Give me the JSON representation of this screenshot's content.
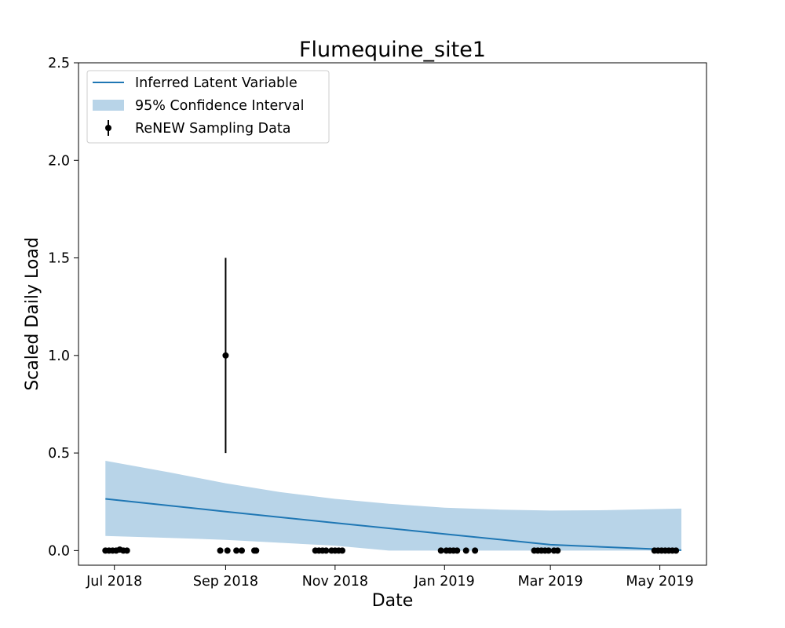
{
  "chart_data": {
    "type": "line",
    "title": "Flumequine_site1",
    "xlabel": "Date",
    "ylabel": "Scaled Daily Load",
    "ylim": [
      -0.075,
      2.5
    ],
    "xlim": [
      "2018-06-11",
      "2019-05-27"
    ],
    "x_ticks": [
      {
        "date": "2018-07-01",
        "label": "Jul 2018"
      },
      {
        "date": "2018-09-01",
        "label": "Sep 2018"
      },
      {
        "date": "2018-11-01",
        "label": "Nov 2018"
      },
      {
        "date": "2019-01-01",
        "label": "Jan 2019"
      },
      {
        "date": "2019-03-01",
        "label": "Mar 2019"
      },
      {
        "date": "2019-05-01",
        "label": "May 2019"
      }
    ],
    "y_ticks": [
      {
        "value": 0.0,
        "label": "0.0"
      },
      {
        "value": 0.5,
        "label": "0.5"
      },
      {
        "value": 1.0,
        "label": "1.0"
      },
      {
        "value": 1.5,
        "label": "1.5"
      },
      {
        "value": 2.0,
        "label": "2.0"
      },
      {
        "value": 2.5,
        "label": "2.5"
      }
    ],
    "grid": false,
    "legend": {
      "position": "top-left",
      "entries": [
        {
          "label": "Inferred Latent Variable",
          "kind": "line"
        },
        {
          "label": "95% Confidence Interval",
          "kind": "band"
        },
        {
          "label": "ReNEW Sampling Data",
          "kind": "errorbar"
        }
      ]
    },
    "colors": {
      "latent": "#1f77b4",
      "ci": "#b8d4e8",
      "samples": "#000000"
    },
    "series": [
      {
        "name": "Inferred Latent Variable",
        "kind": "line",
        "points": [
          {
            "x": "2018-06-26",
            "y": 0.265
          },
          {
            "x": "2018-09-01",
            "y": 0.2
          },
          {
            "x": "2018-11-01",
            "y": 0.142
          },
          {
            "x": "2019-01-01",
            "y": 0.085
          },
          {
            "x": "2019-03-01",
            "y": 0.03
          },
          {
            "x": "2019-05-13",
            "y": 0.002
          }
        ]
      },
      {
        "name": "95% Confidence Interval",
        "kind": "band",
        "points": [
          {
            "x": "2018-06-26",
            "upper": 0.46,
            "lower": 0.075
          },
          {
            "x": "2018-08-01",
            "upper": 0.4,
            "lower": 0.065
          },
          {
            "x": "2018-09-01",
            "upper": 0.345,
            "lower": 0.055
          },
          {
            "x": "2018-10-01",
            "upper": 0.3,
            "lower": 0.04
          },
          {
            "x": "2018-11-01",
            "upper": 0.265,
            "lower": 0.025
          },
          {
            "x": "2018-12-01",
            "upper": 0.24,
            "lower": 0.0
          },
          {
            "x": "2019-01-01",
            "upper": 0.22,
            "lower": 0.0
          },
          {
            "x": "2019-02-01",
            "upper": 0.21,
            "lower": 0.0
          },
          {
            "x": "2019-03-01",
            "upper": 0.205,
            "lower": 0.0
          },
          {
            "x": "2019-04-01",
            "upper": 0.207,
            "lower": 0.0
          },
          {
            "x": "2019-05-13",
            "upper": 0.215,
            "lower": 0.0
          }
        ]
      },
      {
        "name": "ReNEW Sampling Data",
        "kind": "errorbar",
        "points": [
          {
            "x": "2018-06-26",
            "y": 0.0
          },
          {
            "x": "2018-06-28",
            "y": 0.0
          },
          {
            "x": "2018-06-30",
            "y": 0.0
          },
          {
            "x": "2018-07-02",
            "y": 0.0
          },
          {
            "x": "2018-07-04",
            "y": 0.005
          },
          {
            "x": "2018-07-06",
            "y": 0.0
          },
          {
            "x": "2018-07-08",
            "y": 0.0
          },
          {
            "x": "2018-08-29",
            "y": 0.0
          },
          {
            "x": "2018-09-01",
            "y": 1.0,
            "err_low": 0.5,
            "err_high": 1.5
          },
          {
            "x": "2018-09-02",
            "y": 0.0
          },
          {
            "x": "2018-09-07",
            "y": 0.0
          },
          {
            "x": "2018-09-10",
            "y": 0.0
          },
          {
            "x": "2018-09-17",
            "y": 0.0
          },
          {
            "x": "2018-09-18",
            "y": 0.0
          },
          {
            "x": "2018-10-21",
            "y": 0.0
          },
          {
            "x": "2018-10-23",
            "y": 0.0
          },
          {
            "x": "2018-10-25",
            "y": 0.0
          },
          {
            "x": "2018-10-27",
            "y": 0.0
          },
          {
            "x": "2018-10-30",
            "y": 0.0
          },
          {
            "x": "2018-11-01",
            "y": 0.0
          },
          {
            "x": "2018-11-03",
            "y": 0.0
          },
          {
            "x": "2018-11-05",
            "y": 0.0
          },
          {
            "x": "2018-12-30",
            "y": 0.0
          },
          {
            "x": "2019-01-02",
            "y": 0.0
          },
          {
            "x": "2019-01-04",
            "y": 0.0
          },
          {
            "x": "2019-01-06",
            "y": 0.0
          },
          {
            "x": "2019-01-08",
            "y": 0.0
          },
          {
            "x": "2019-01-13",
            "y": 0.0
          },
          {
            "x": "2019-01-18",
            "y": 0.0
          },
          {
            "x": "2019-02-20",
            "y": 0.0
          },
          {
            "x": "2019-02-22",
            "y": 0.0
          },
          {
            "x": "2019-02-24",
            "y": 0.0
          },
          {
            "x": "2019-02-26",
            "y": 0.0
          },
          {
            "x": "2019-02-28",
            "y": 0.0
          },
          {
            "x": "2019-03-03",
            "y": 0.0
          },
          {
            "x": "2019-03-05",
            "y": 0.0
          },
          {
            "x": "2019-04-28",
            "y": 0.0
          },
          {
            "x": "2019-04-30",
            "y": 0.0
          },
          {
            "x": "2019-05-02",
            "y": 0.0
          },
          {
            "x": "2019-05-04",
            "y": 0.0
          },
          {
            "x": "2019-05-06",
            "y": 0.0
          },
          {
            "x": "2019-05-08",
            "y": 0.0
          },
          {
            "x": "2019-05-10",
            "y": 0.0
          }
        ]
      }
    ]
  }
}
